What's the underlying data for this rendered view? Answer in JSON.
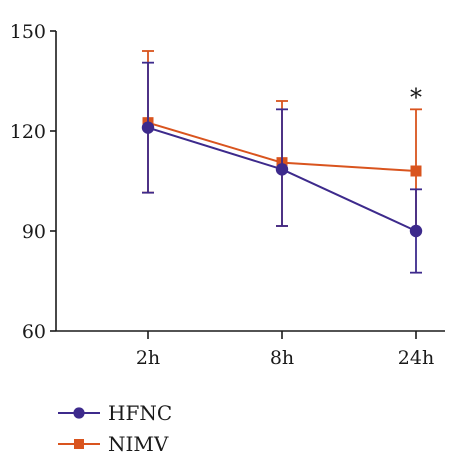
{
  "chart_data": {
    "type": "line",
    "title": "",
    "xlabel": "",
    "ylabel": "",
    "categories": [
      "2h",
      "8h",
      "24h"
    ],
    "ylim": [
      60,
      150
    ],
    "yticks": [
      60,
      90,
      120,
      150
    ],
    "grid": false,
    "legend_position": "bottom-left",
    "series": [
      {
        "name": "HFNC",
        "color": "#3d2a8c",
        "marker": "circle",
        "values": [
          121,
          108.5,
          90
        ],
        "error_upper": [
          140.5,
          126.5,
          102.5
        ],
        "error_lower": [
          101.5,
          91.5,
          77.5
        ]
      },
      {
        "name": "NIMV",
        "color": "#d9541e",
        "marker": "square",
        "values": [
          122.5,
          110.5,
          108
        ],
        "error_upper": [
          144,
          129,
          126.5
        ],
        "error_lower": [
          101.5,
          91.5,
          90
        ]
      }
    ],
    "annotations": [
      {
        "category": "24h",
        "text": "*"
      }
    ]
  }
}
